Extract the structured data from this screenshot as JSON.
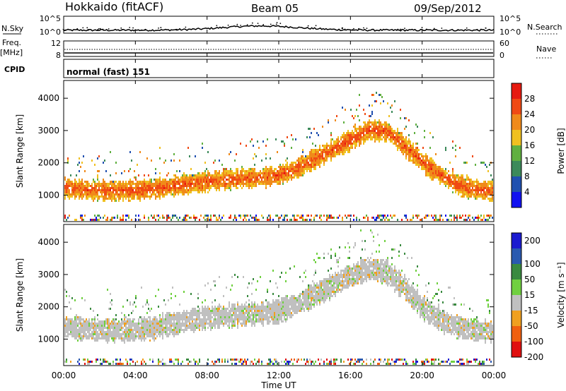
{
  "header": {
    "station": "Hokkaido (fitACF)",
    "beam": "Beam 05",
    "date": "09/Sep/2012"
  },
  "strips": {
    "nsky_label": "N.Sky",
    "nsky_ticks": [
      "10^5",
      "10^0"
    ],
    "nsearch_label": "N.Search",
    "nsearch_ticks": [
      "10^5",
      "10^0"
    ],
    "freq_label_1": "Freq.",
    "freq_label_2": "[MHz]",
    "freq_ticks": [
      "12",
      "8"
    ],
    "nave_label": "Nave",
    "nave_ticks": [
      "60",
      "0"
    ],
    "cpid_label": "CPID",
    "cpid_value": "normal (fast) 151"
  },
  "axes": {
    "y_label": "Slant Range [km]",
    "y_ticks": [
      "4000",
      "3000",
      "2000",
      "1000"
    ],
    "x_label": "Time UT",
    "x_ticks": [
      "00:00",
      "04:00",
      "08:00",
      "12:00",
      "16:00",
      "20:00",
      "00:00"
    ]
  },
  "colorbars": {
    "power_label": "Power [dB]",
    "power_ticks": [
      "28",
      "24",
      "20",
      "16",
      "12",
      "8",
      "4"
    ],
    "velocity_label": "Velocity [m s⁻¹]",
    "velocity_ticks": [
      "200",
      "100",
      "50",
      "15",
      "-15",
      "-50",
      "-100",
      "-200"
    ]
  },
  "colors": {
    "power_scale": [
      "#1010f0",
      "#2050b0",
      "#3c8a5a",
      "#60b040",
      "#f0c020",
      "#f08a1a",
      "#f04a14",
      "#e61a10"
    ],
    "velocity_scale": [
      "#1a1ad0",
      "#2a5ab0",
      "#3a8a40",
      "#70d040",
      "#c0c0c0",
      "#f0a020",
      "#f06010",
      "#e01010"
    ]
  },
  "chart_data": [
    {
      "type": "heatmap",
      "panel": "power",
      "xlabel": "Time UT",
      "ylabel": "Slant Range [km]",
      "xlim": [
        "00:00",
        "24:00"
      ],
      "ylim": [
        180,
        4550
      ],
      "colorbar": {
        "label": "Power [dB]",
        "range": [
          0,
          32
        ]
      },
      "bands": [
        {
          "name": "main",
          "t": [
            0,
            1,
            2,
            3,
            4,
            5,
            6,
            7,
            8,
            9,
            10,
            11,
            12,
            13,
            14,
            15,
            16,
            17,
            18,
            19,
            20,
            21,
            22,
            23,
            24
          ],
          "center_km": [
            1250,
            1200,
            1180,
            1160,
            1180,
            1220,
            1300,
            1380,
            1450,
            1500,
            1550,
            1580,
            1650,
            1850,
            2150,
            2450,
            2750,
            3050,
            3000,
            2550,
            2050,
            1650,
            1350,
            1200,
            1150
          ],
          "half_width_km": 260,
          "power_db": 26
        }
      ]
    },
    {
      "type": "heatmap",
      "panel": "velocity",
      "xlabel": "Time UT",
      "ylabel": "Slant Range [km]",
      "xlim": [
        "00:00",
        "24:00"
      ],
      "ylim": [
        180,
        4550
      ],
      "colorbar": {
        "label": "Velocity [m s⁻¹]",
        "range": [
          -250,
          250
        ]
      },
      "bands": [
        {
          "name": "main",
          "t": [
            0,
            1,
            2,
            3,
            4,
            5,
            6,
            7,
            8,
            9,
            10,
            11,
            12,
            13,
            14,
            15,
            16,
            17,
            18,
            19,
            20,
            21,
            22,
            23,
            24
          ],
          "center_km": [
            1400,
            1350,
            1320,
            1300,
            1320,
            1380,
            1500,
            1600,
            1700,
            1750,
            1800,
            1820,
            1900,
            2100,
            2400,
            2700,
            3000,
            3200,
            3100,
            2600,
            2000,
            1600,
            1400,
            1300,
            1250
          ],
          "half_width_km": 300,
          "velocity_ms": 0
        }
      ]
    }
  ]
}
